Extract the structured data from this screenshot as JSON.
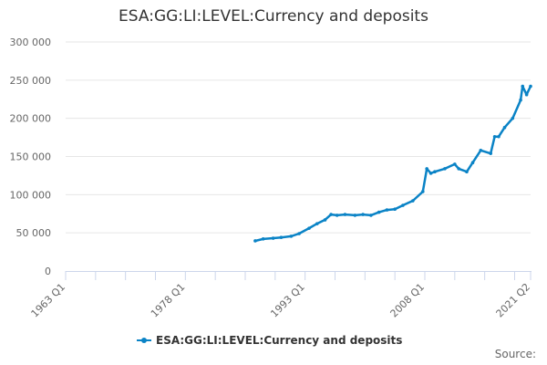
{
  "chart_data": {
    "type": "line",
    "title": "ESA:GG:LI:LEVEL:Currency and deposits",
    "xlabel": "",
    "ylabel": "",
    "x_range": [
      "1963 Q1",
      "2021 Q2"
    ],
    "x_tick_labels": [
      "1963 Q1",
      "1978 Q1",
      "1993 Q1",
      "2008 Q1",
      "2021 Q2"
    ],
    "ylim": [
      0,
      300000
    ],
    "y_tick_labels": [
      "0",
      "50 000",
      "100 000",
      "150 000",
      "200 000",
      "250 000",
      "300 000"
    ],
    "y_ticks": [
      0,
      50000,
      100000,
      150000,
      200000,
      250000,
      300000
    ],
    "grid": true,
    "legend_position": "bottom",
    "color": "#0a83c6",
    "series": [
      {
        "name": "ESA:GG:LI:LEVEL:Currency and deposits",
        "points": [
          [
            "1986 Q4",
            39500
          ],
          [
            "1987 Q4",
            42000
          ],
          [
            "1989 Q1",
            43000
          ],
          [
            "1990 Q1",
            44000
          ],
          [
            "1991 Q2",
            45500
          ],
          [
            "1992 Q2",
            49000
          ],
          [
            "1993 Q3",
            56000
          ],
          [
            "1994 Q3",
            62000
          ],
          [
            "1995 Q3",
            67000
          ],
          [
            "1996 Q2",
            74000
          ],
          [
            "1997 Q1",
            73000
          ],
          [
            "1998 Q1",
            74000
          ],
          [
            "1999 Q2",
            73000
          ],
          [
            "2000 Q2",
            74000
          ],
          [
            "2001 Q2",
            73000
          ],
          [
            "2002 Q2",
            77000
          ],
          [
            "2003 Q2",
            80000
          ],
          [
            "2004 Q2",
            81000
          ],
          [
            "2005 Q2",
            86000
          ],
          [
            "2006 Q3",
            92000
          ],
          [
            "2007 Q4",
            104000
          ],
          [
            "2008 Q2",
            134000
          ],
          [
            "2008 Q4",
            128000
          ],
          [
            "2009 Q2",
            130000
          ],
          [
            "2010 Q3",
            134000
          ],
          [
            "2011 Q4",
            140000
          ],
          [
            "2012 Q2",
            134000
          ],
          [
            "2013 Q2",
            130000
          ],
          [
            "2014 Q1",
            142000
          ],
          [
            "2015 Q1",
            158000
          ],
          [
            "2016 Q2",
            154000
          ],
          [
            "2016 Q4",
            176000
          ],
          [
            "2017 Q2",
            176000
          ],
          [
            "2018 Q1",
            188000
          ],
          [
            "2019 Q1",
            200000
          ],
          [
            "2020 Q1",
            224000
          ],
          [
            "2020 Q2",
            242000
          ],
          [
            "2020 Q4",
            231000
          ],
          [
            "2021 Q2",
            242000
          ]
        ]
      }
    ]
  },
  "footer": {
    "source": "Source:"
  }
}
